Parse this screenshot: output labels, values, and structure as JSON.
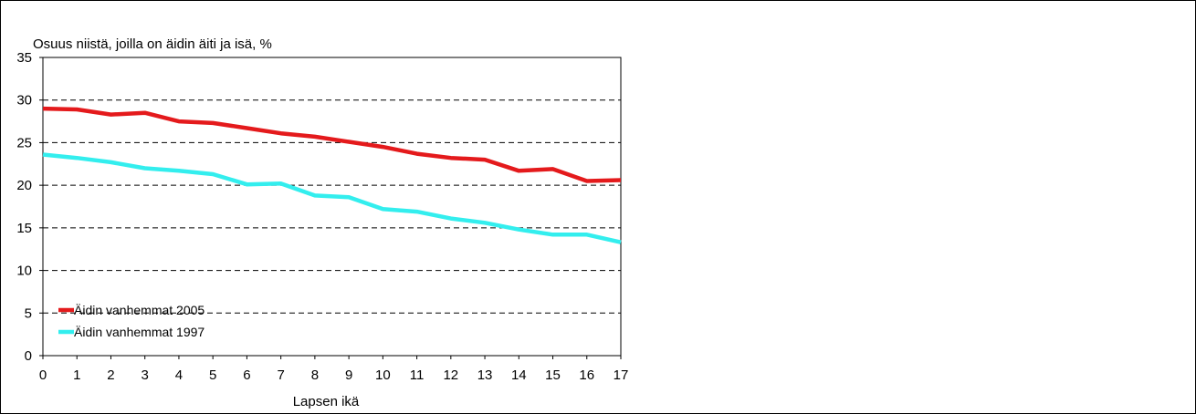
{
  "chart_data": {
    "type": "line",
    "title": "",
    "ylabel": "Osuus niistä, joilla on äidin äiti ja isä, %",
    "xlabel": "Lapsen ikä",
    "categories": [
      "0",
      "1",
      "2",
      "3",
      "4",
      "5",
      "6",
      "7",
      "8",
      "9",
      "10",
      "11",
      "12",
      "13",
      "14",
      "15",
      "16",
      "17"
    ],
    "yticks": [
      "0",
      "5",
      "10",
      "15",
      "20",
      "25",
      "30",
      "35"
    ],
    "ylim": [
      0,
      35
    ],
    "grid": true,
    "legend_position": "bottom-left",
    "series": [
      {
        "name": "Äidin vanhemmat 2005",
        "color": "#e41a1c",
        "values": [
          29.0,
          28.9,
          28.3,
          28.5,
          27.5,
          27.3,
          26.7,
          26.1,
          25.7,
          25.1,
          24.5,
          23.7,
          23.2,
          23.0,
          21.7,
          21.9,
          20.5,
          20.6
        ]
      },
      {
        "name": "Äidin vanhemmat 1997",
        "color": "#33eeee",
        "values": [
          23.6,
          23.2,
          22.7,
          22.0,
          21.7,
          21.3,
          20.1,
          20.2,
          18.8,
          18.6,
          17.2,
          16.9,
          16.1,
          15.6,
          14.8,
          14.2,
          14.2,
          13.3
        ]
      }
    ]
  }
}
